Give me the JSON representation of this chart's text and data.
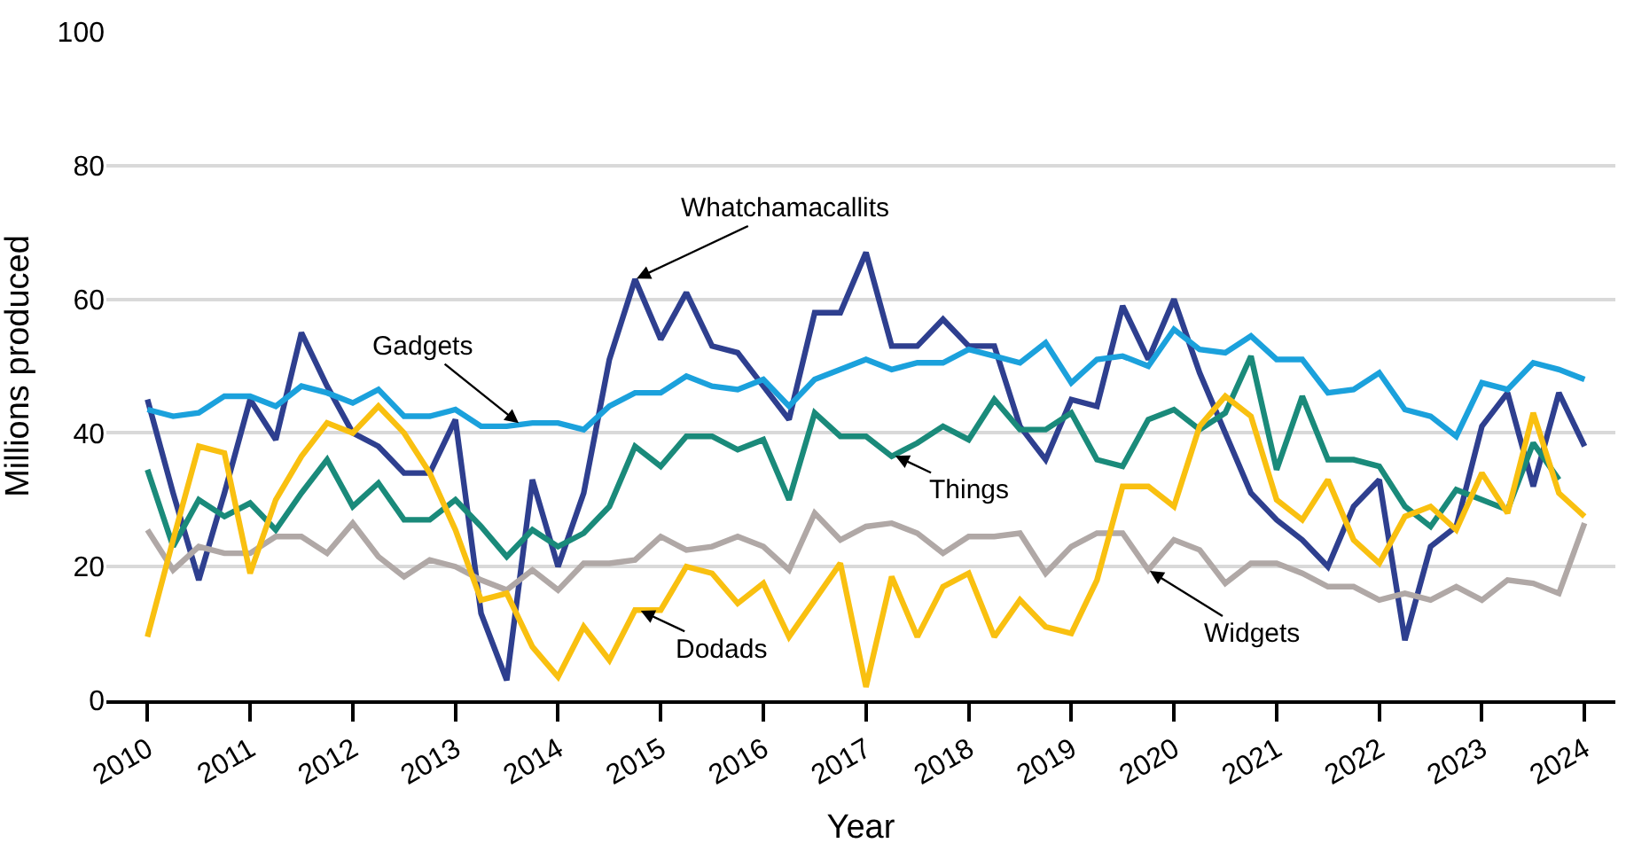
{
  "chart_data": {
    "type": "line",
    "xlabel": "Year",
    "ylabel": "Millions produced",
    "x": [
      2010,
      2010.25,
      2010.5,
      2010.75,
      2011,
      2011.25,
      2011.5,
      2011.75,
      2012,
      2012.25,
      2012.5,
      2012.75,
      2013,
      2013.25,
      2013.5,
      2013.75,
      2014,
      2014.25,
      2014.5,
      2014.75,
      2015,
      2015.25,
      2015.5,
      2015.75,
      2016,
      2016.25,
      2016.5,
      2016.75,
      2017,
      2017.25,
      2017.5,
      2017.75,
      2018,
      2018.25,
      2018.5,
      2018.75,
      2019,
      2019.25,
      2019.5,
      2019.75,
      2020,
      2020.25,
      2020.5,
      2020.75,
      2021,
      2021.25,
      2021.5,
      2021.75,
      2022,
      2022.25,
      2022.5,
      2022.75,
      2023,
      2023.25,
      2023.5,
      2023.75,
      2024
    ],
    "series": [
      {
        "color": "#2e3f8f",
        "values": [
          45,
          31,
          18,
          31,
          45,
          39,
          55,
          47,
          40,
          38,
          34,
          34,
          42,
          13,
          3,
          33,
          20,
          31,
          51,
          63,
          54,
          61,
          53,
          52,
          47,
          42,
          58,
          58,
          67,
          53,
          53,
          57,
          53,
          53,
          41,
          36,
          45,
          44,
          59,
          51,
          60,
          49,
          40,
          31,
          27,
          24,
          20,
          29,
          33,
          9,
          23,
          26,
          41,
          46,
          32,
          46,
          38
        ]
      },
      {
        "color": "#1ba1dc",
        "values": [
          43.5,
          42.5,
          43,
          45.5,
          45.5,
          44,
          47,
          46,
          44.5,
          46.5,
          42.5,
          42.5,
          43.5,
          41,
          41,
          41.5,
          41.5,
          40.5,
          44,
          46,
          46,
          48.5,
          47,
          46.5,
          48,
          44,
          48,
          49.5,
          51,
          49.5,
          50.5,
          50.5,
          52.5,
          51.5,
          50.5,
          53.5,
          47.5,
          51,
          51.5,
          50,
          55.5,
          52.5,
          52,
          54.5,
          51,
          51,
          46,
          46.5,
          49,
          43.5,
          42.5,
          39.5,
          47.5,
          46.5,
          50.5,
          49.5,
          48
        ]
      },
      {
        "color": "#1a8a7a",
        "values": [
          34.5,
          23,
          30,
          27.5,
          29.5,
          25.5,
          31,
          36,
          29,
          32.5,
          27,
          27,
          30,
          26,
          21.5,
          25.5,
          23,
          25,
          29,
          38,
          35,
          39.5,
          39.5,
          37.5,
          39,
          30,
          43,
          39.5,
          39.5,
          36.5,
          38.5,
          41,
          39,
          45,
          40.5,
          40.5,
          43,
          36,
          35,
          42,
          43.5,
          40.5,
          43,
          51.5,
          34.5,
          45.5,
          36,
          36,
          35,
          29,
          26,
          31.5,
          30,
          28.5,
          38.5,
          33,
          null
        ]
      },
      {
        "color": "#b0a8a6",
        "values": [
          25.5,
          19.5,
          23,
          22,
          22,
          24.5,
          24.5,
          22,
          26.5,
          21.5,
          18.5,
          21,
          20,
          18,
          16.5,
          19.5,
          16.5,
          20.5,
          20.5,
          21,
          24.5,
          22.5,
          23,
          24.5,
          23,
          19.5,
          28,
          24,
          26,
          26.5,
          25,
          22,
          24.5,
          24.5,
          25,
          19,
          23,
          25,
          25,
          19.5,
          24,
          22.5,
          17.5,
          20.5,
          20.5,
          19,
          17,
          17,
          15,
          16,
          15,
          17,
          15,
          18,
          17.5,
          16,
          26.5
        ]
      },
      {
        "color": "#f9c010",
        "values": [
          9.5,
          24,
          38,
          37,
          19,
          30,
          36.5,
          41.5,
          40,
          44,
          40,
          34,
          25.5,
          15,
          16,
          8,
          3.5,
          11,
          6,
          13.5,
          13.5,
          20,
          19,
          14.5,
          17.5,
          9.5,
          15,
          20.5,
          2,
          18.5,
          9.5,
          17,
          19,
          9.5,
          15,
          11,
          10,
          18,
          32,
          32,
          29,
          41,
          45.5,
          42.5,
          30,
          27,
          33,
          24,
          20.5,
          27.5,
          29,
          25.5,
          34,
          28,
          43,
          31,
          27.5
        ]
      }
    ],
    "xlim": [
      2009.6,
      2024.3
    ],
    "xticks": [
      2010,
      2011,
      2012,
      2013,
      2014,
      2015,
      2016,
      2017,
      2018,
      2019,
      2020,
      2021,
      2022,
      2023,
      2024
    ],
    "ylim": [
      0,
      100
    ],
    "yticks": [
      0,
      20,
      40,
      60,
      80,
      100
    ],
    "grid": "y",
    "marker": "none",
    "line_style": "solid",
    "annotations": [
      {
        "text": "Whatchamacallits",
        "x": 2014.75,
        "y": 63
      },
      {
        "text": "Gadgets",
        "x": 2013.63,
        "y": 41.3
      },
      {
        "text": "Things",
        "x": 2017.27,
        "y": 36.7
      },
      {
        "text": "Dodads",
        "x": 2014.79,
        "y": 13.5
      },
      {
        "text": "Widgets",
        "x": 2019.75,
        "y": 19.5
      }
    ]
  }
}
